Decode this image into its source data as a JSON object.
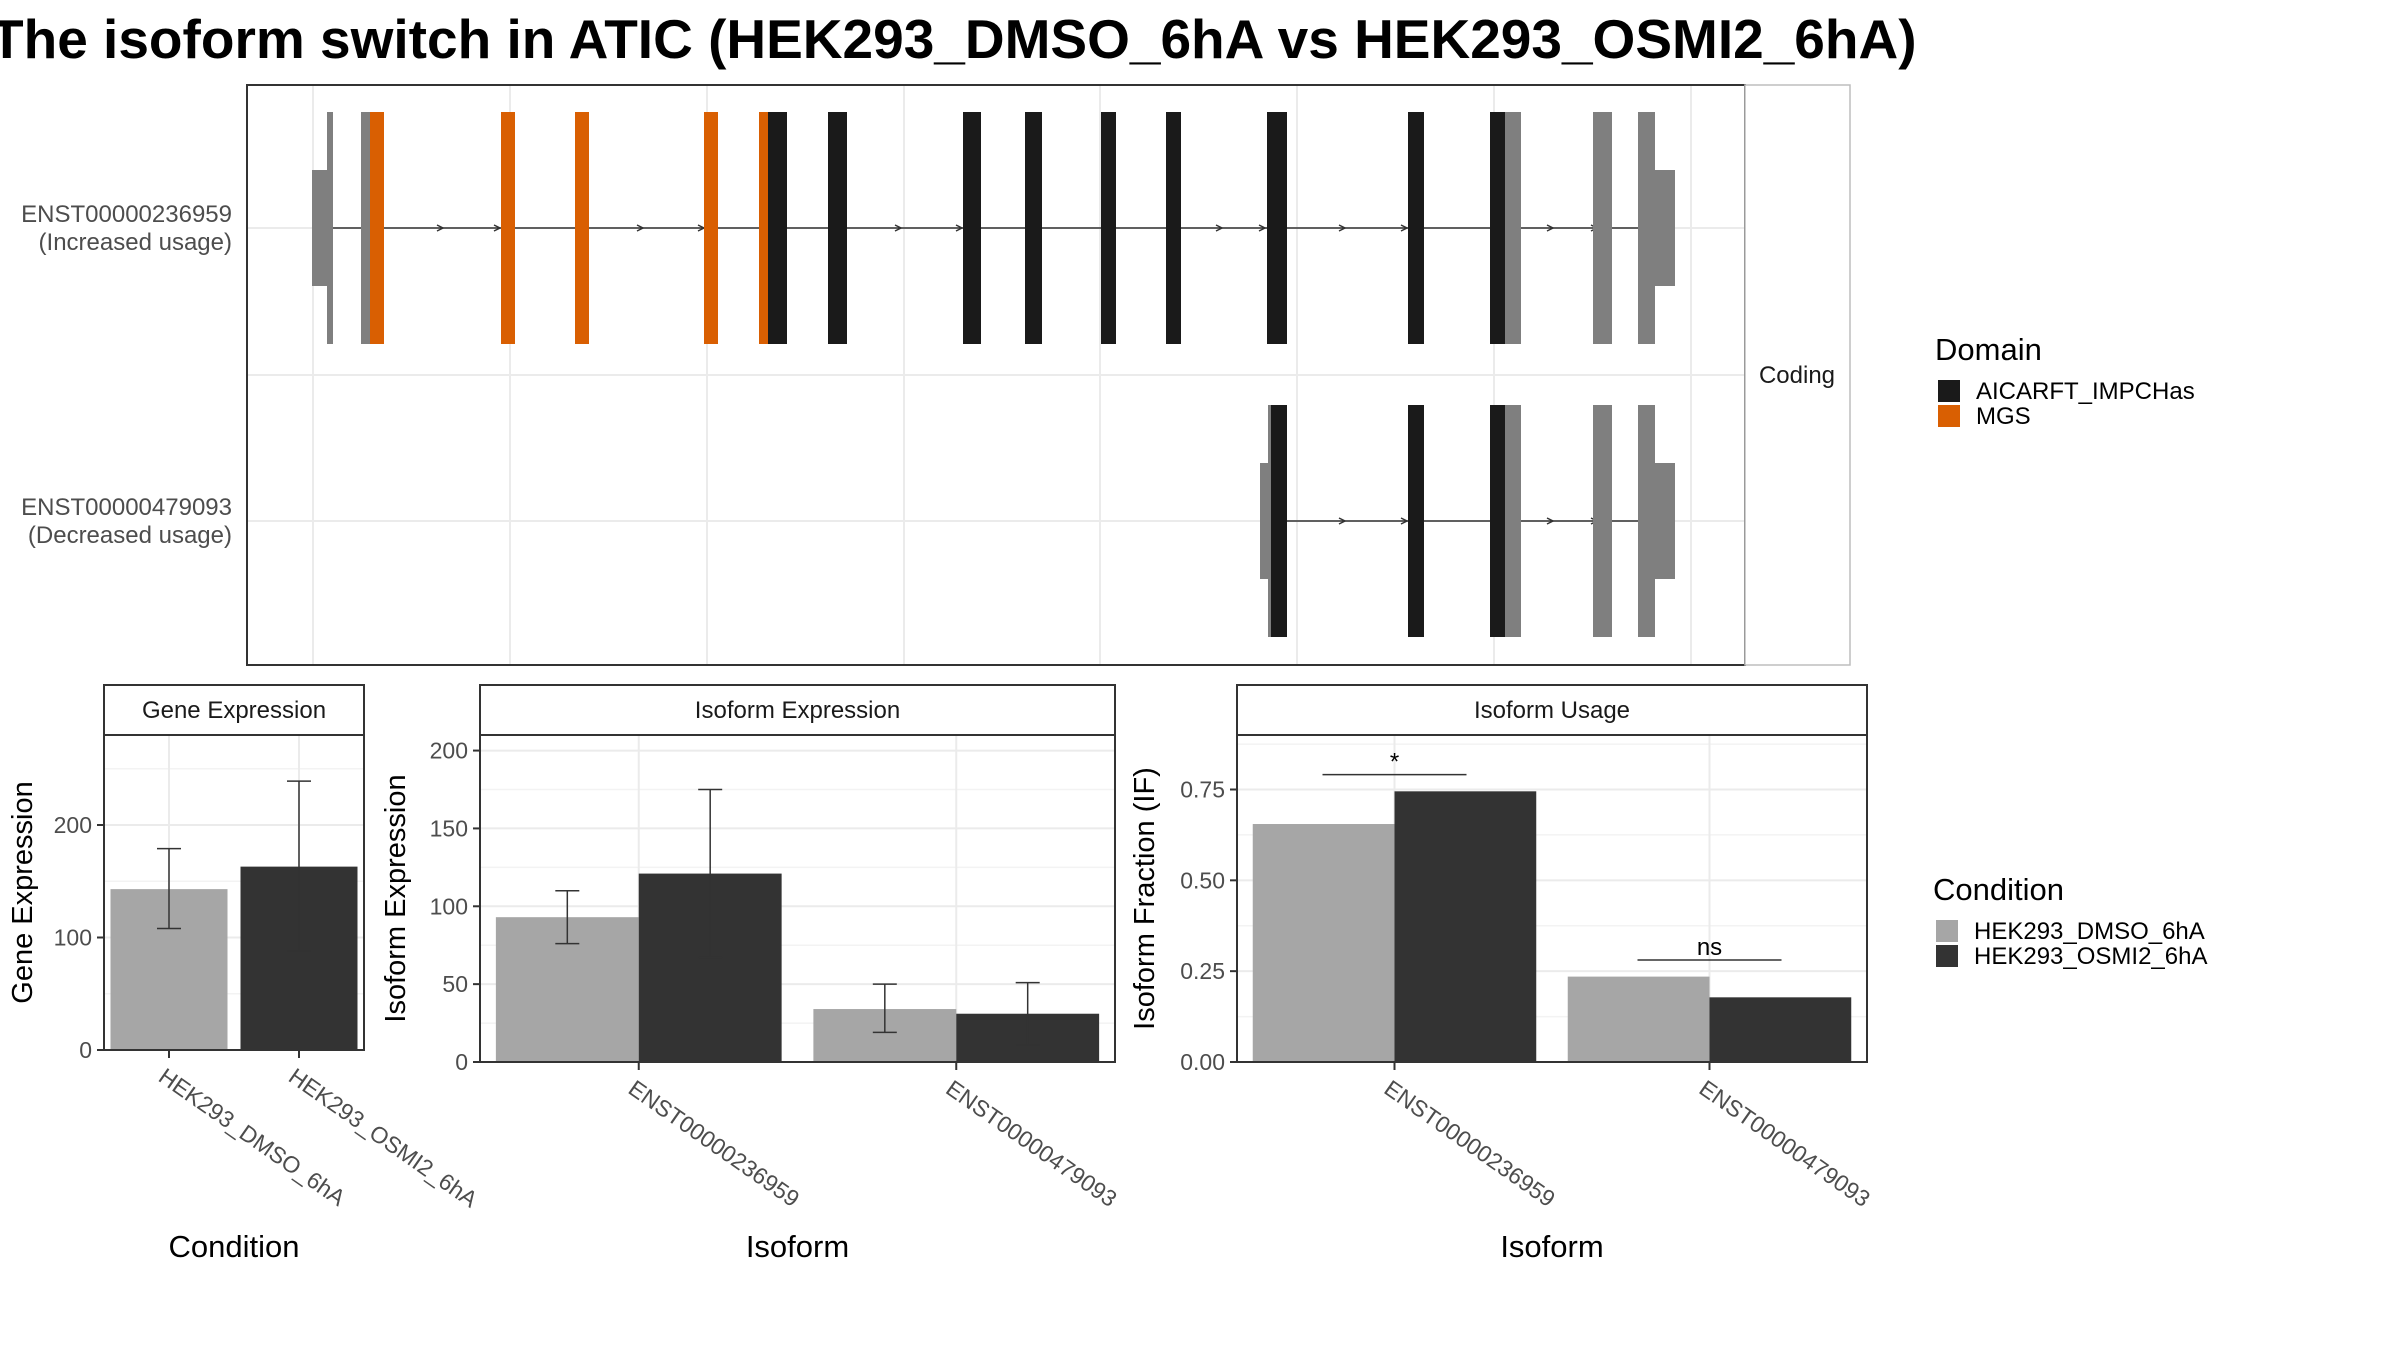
{
  "title": "The isoform switch in ATIC (HEK293_DMSO_6hA vs HEK293_OSMI2_6hA)",
  "colors": {
    "domain_AICARFT": "#1a1a1a",
    "domain_MGS": "#d95f02",
    "exon_noncoding": "#7f7f7f",
    "dmso": "#a6a6a6",
    "osmi2": "#333333"
  },
  "structure_panel": {
    "strip_label": "Coding",
    "transcripts": [
      {
        "id": "ENST00000236959",
        "note": "(Increased usage)"
      },
      {
        "id": "ENST00000479093",
        "note": "(Decreased usage)"
      }
    ]
  },
  "legends": {
    "domain": {
      "title": "Domain",
      "items": [
        {
          "label": "AICARFT_IMPCHas",
          "color": "#1a1a1a"
        },
        {
          "label": "MGS",
          "color": "#d95f02"
        }
      ]
    },
    "condition": {
      "title": "Condition",
      "items": [
        {
          "label": "HEK293_DMSO_6hA",
          "color": "#a6a6a6"
        },
        {
          "label": "HEK293_OSMI2_6hA",
          "color": "#333333"
        }
      ]
    }
  },
  "chart_data": [
    {
      "type": "bar",
      "title": "Gene Expression",
      "xlabel": "Condition",
      "ylabel": "Gene Expression",
      "ylim": [
        0,
        280
      ],
      "yticks": [
        0,
        100,
        200
      ],
      "categories": [
        "HEK293_DMSO_6hA",
        "HEK293_OSMI2_6hA"
      ],
      "values": [
        143,
        163
      ],
      "error_low": [
        108,
        88
      ],
      "error_high": [
        179,
        239
      ]
    },
    {
      "type": "bar",
      "title": "Isoform Expression",
      "xlabel": "Isoform",
      "ylabel": "Isoform Expression",
      "ylim": [
        0,
        210
      ],
      "yticks": [
        0,
        50,
        100,
        150,
        200
      ],
      "categories": [
        "ENST00000236959",
        "ENST00000479093"
      ],
      "series": [
        {
          "name": "HEK293_DMSO_6hA",
          "values": [
            93,
            34
          ],
          "error_low": [
            76,
            19
          ],
          "error_high": [
            110,
            50
          ]
        },
        {
          "name": "HEK293_OSMI2_6hA",
          "values": [
            121,
            31
          ],
          "error_low": [
            67,
            11
          ],
          "error_high": [
            175,
            51
          ]
        }
      ]
    },
    {
      "type": "bar",
      "title": "Isoform Usage",
      "xlabel": "Isoform",
      "ylabel": "Isoform Fraction (IF)",
      "ylim": [
        0,
        0.9
      ],
      "yticks": [
        "0.00",
        "0.25",
        "0.50",
        "0.75"
      ],
      "categories": [
        "ENST00000236959",
        "ENST00000479093"
      ],
      "series": [
        {
          "name": "HEK293_DMSO_6hA",
          "values": [
            0.655,
            0.235
          ]
        },
        {
          "name": "HEK293_OSMI2_6hA",
          "values": [
            0.745,
            0.178
          ]
        }
      ],
      "significance": [
        "*",
        "ns"
      ]
    }
  ]
}
